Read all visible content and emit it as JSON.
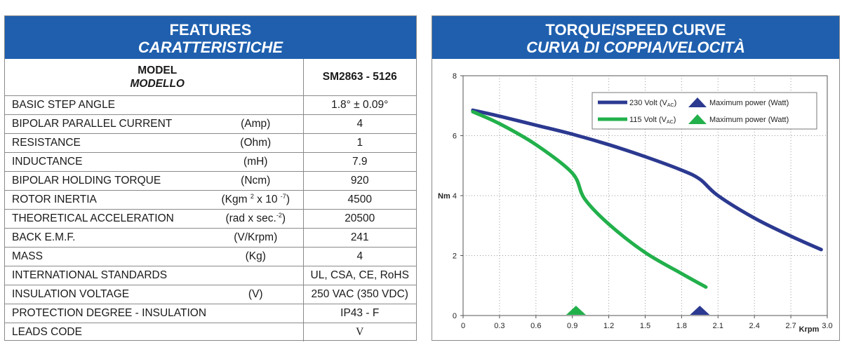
{
  "features": {
    "title": "FEATURES",
    "title_it": "CARATTERISTICHE",
    "model_label": "MODEL",
    "model_label_it": "MODELLO",
    "model_value": "SM2863 - 5126",
    "rows": [
      {
        "label": "BASIC STEP ANGLE",
        "unit": "",
        "value": "1.8°  ± 0.09°"
      },
      {
        "label": "BIPOLAR PARALLEL CURRENT",
        "unit": "(Amp)",
        "value": "4"
      },
      {
        "label": "RESISTANCE",
        "unit": "(Ohm)",
        "value": "1"
      },
      {
        "label": "INDUCTANCE",
        "unit": "(mH)",
        "value": "7.9"
      },
      {
        "label": "BIPOLAR HOLDING TORQUE",
        "unit": "(Ncm)",
        "value": "920"
      },
      {
        "label": "ROTOR INERTIA",
        "unit_main": "(Kgm ",
        "unit_sup1": "2",
        "unit_mid": " x 10 ",
        "unit_sup2": "-7",
        "unit_end": ")",
        "value": "4500"
      },
      {
        "label": "THEORETICAL ACCELERATION",
        "unit_main": "(rad x sec.",
        "unit_sup1": "-2",
        "unit_end": ")",
        "value": "20500"
      },
      {
        "label": "BACK E.M.F.",
        "unit": "(V/Krpm)",
        "value": "241"
      },
      {
        "label": "MASS",
        "unit": "(Kg)",
        "value": "4"
      },
      {
        "label": "INTERNATIONAL STANDARDS",
        "unit": "",
        "value": "UL, CSA, CE, RoHS"
      },
      {
        "label": "INSULATION VOLTAGE",
        "unit": "(V)",
        "value": "250 VAC (350 VDC)"
      },
      {
        "label": "PROTECTION DEGREE - INSULATION CLASS",
        "unit": "",
        "value": "IP43 - F"
      },
      {
        "label": "LEADS CODE",
        "unit": "",
        "value": "V"
      }
    ]
  },
  "curve_panel": {
    "title": "TORQUE/SPEED CURVE",
    "title_it": "CURVA DI COPPIA/VELOCITÀ"
  },
  "chart_data": {
    "type": "line",
    "ylabel": "Nm",
    "xlabel": "Krpm",
    "xlim": [
      0,
      3.0
    ],
    "ylim": [
      0,
      8
    ],
    "x_ticks": [
      "0",
      "0.3",
      "0.6",
      "0.9",
      "1.2",
      "1.5",
      "1.8",
      "2.1",
      "2.4",
      "2.7",
      "3.0"
    ],
    "y_ticks": [
      "0",
      "2",
      "4",
      "6",
      "8"
    ],
    "grid": true,
    "legend_position": "top-right",
    "colors": {
      "v230": "#2b3990",
      "v115": "#22b04b"
    },
    "series": [
      {
        "name": "230 Volt (VAC)",
        "legend_main": "230 Volt (V",
        "legend_sub": "AC",
        "legend_end": ")",
        "color": "#2b3990",
        "x": [
          0.08,
          0.3,
          0.6,
          0.9,
          1.2,
          1.5,
          1.8,
          1.95,
          2.1,
          2.4,
          2.7,
          2.95
        ],
        "y": [
          6.85,
          6.65,
          6.35,
          6.05,
          5.7,
          5.3,
          4.85,
          4.55,
          4.0,
          3.25,
          2.65,
          2.2
        ]
      },
      {
        "name": "115 Volt (VAC)",
        "legend_main": "115 Volt (V",
        "legend_sub": "AC",
        "legend_end": ")",
        "color": "#22b04b",
        "x": [
          0.08,
          0.3,
          0.6,
          0.9,
          1.0,
          1.2,
          1.5,
          1.8,
          2.0
        ],
        "y": [
          6.8,
          6.4,
          5.7,
          4.75,
          3.9,
          3.05,
          2.1,
          1.4,
          0.95
        ]
      }
    ],
    "legend_marker_label": "Maximum power (Watt)",
    "max_power_markers": [
      {
        "series": "230 Volt (VAC)",
        "x": 1.95,
        "color": "#2b3990"
      },
      {
        "series": "115 Volt (VAC)",
        "x": 0.93,
        "color": "#22b04b"
      }
    ]
  }
}
